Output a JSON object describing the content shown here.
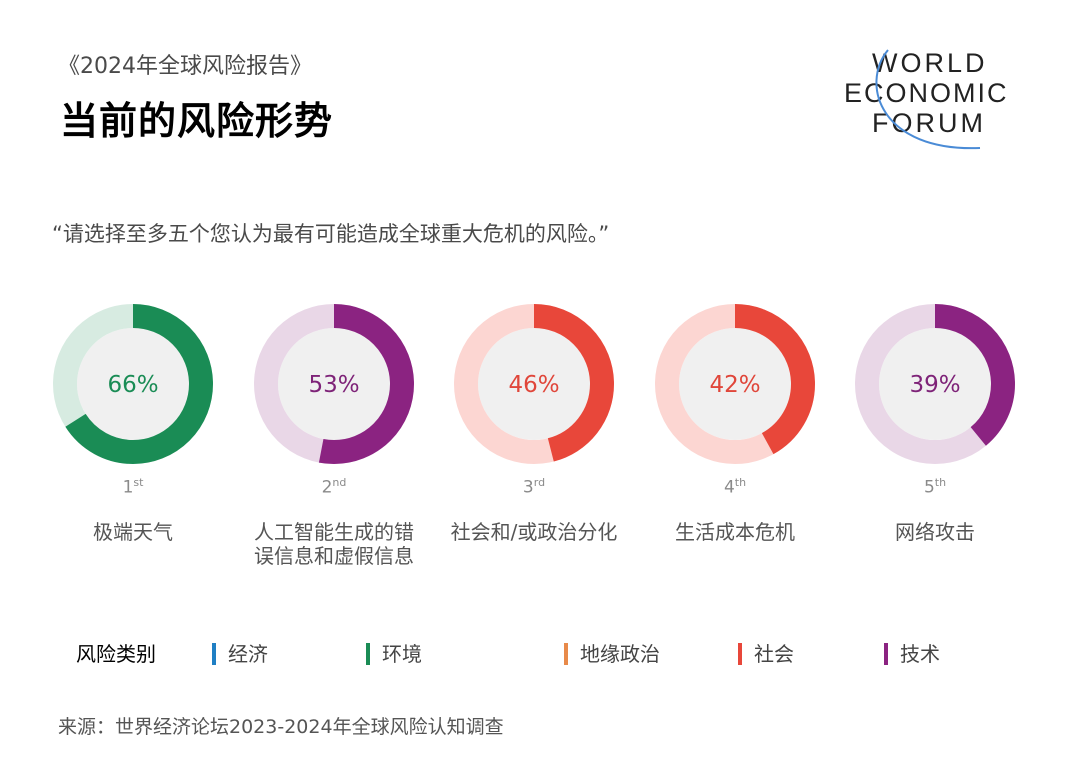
{
  "header": {
    "subtitle": "《2024年全球风险报告》",
    "title": "当前的风险形势"
  },
  "logo": {
    "line1": "WORLD",
    "line2": "ECONOMIC",
    "line3": "FORUM"
  },
  "question": "“请选择至多五个您认为最有可能造成全球重大危机的风险。”",
  "chart_data": {
    "type": "pie",
    "items": [
      {
        "rank": "1",
        "suffix": "st",
        "value": 66,
        "value_label": "66%",
        "label": "极端天气",
        "category": "环境",
        "color": "#1a8c55",
        "light": "#d7ebe1",
        "text_color": "#1a8c55"
      },
      {
        "rank": "2",
        "suffix": "nd",
        "value": 53,
        "value_label": "53%",
        "label": "人工智能生成的错误信息和虚假信息",
        "category": "技术",
        "color": "#8b2381",
        "light": "#e9d7e7",
        "text_color": "#7e2378"
      },
      {
        "rank": "3",
        "suffix": "rd",
        "value": 46,
        "value_label": "46%",
        "label": "社会和/或政治分化",
        "category": "社会",
        "color": "#e8473a",
        "light": "#fcd6d2",
        "text_color": "#e0463a"
      },
      {
        "rank": "4",
        "suffix": "th",
        "value": 42,
        "value_label": "42%",
        "label": "生活成本危机",
        "category": "社会",
        "color": "#e8473a",
        "light": "#fcd6d2",
        "text_color": "#e0463a"
      },
      {
        "rank": "5",
        "suffix": "th",
        "value": 39,
        "value_label": "39%",
        "label": "网络攻击",
        "category": "技术",
        "color": "#8b2381",
        "light": "#e9d7e7",
        "text_color": "#7e2378"
      }
    ]
  },
  "legend": {
    "title": "风险类别",
    "items": [
      {
        "label": "经济",
        "color": "#1f7fc4"
      },
      {
        "label": "环境",
        "color": "#1a8c55"
      },
      {
        "label": "地缘政治",
        "color": "#e88a4a"
      },
      {
        "label": "社会",
        "color": "#e8473a"
      },
      {
        "label": "技术",
        "color": "#8b2381"
      }
    ]
  },
  "source": "来源：世界经济论坛2023-2024年全球风险认知调查"
}
